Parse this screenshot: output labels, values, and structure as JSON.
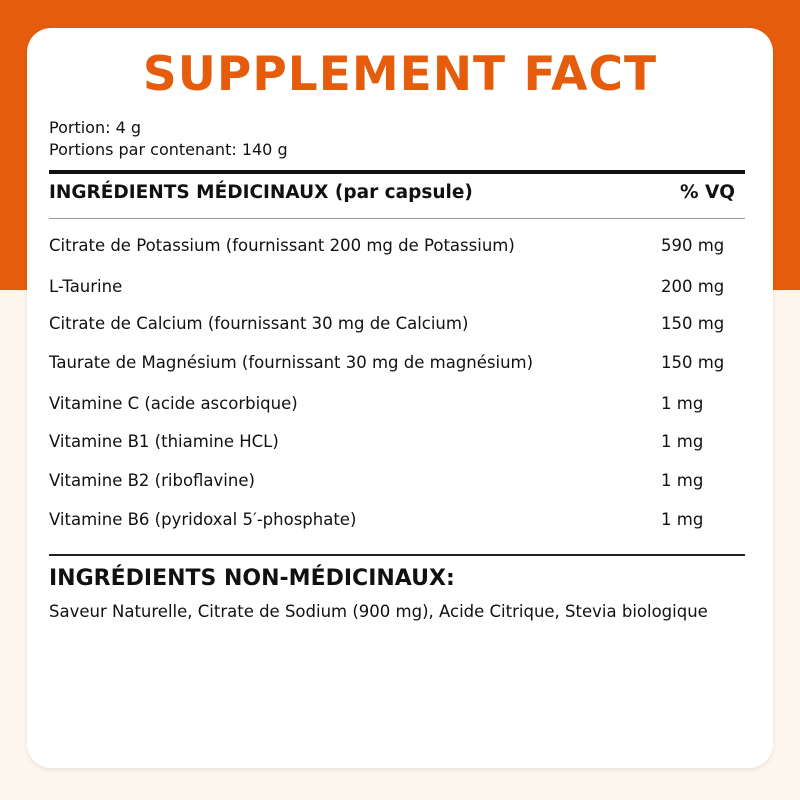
{
  "colors": {
    "accent": "#e55d0c",
    "background": "#fcf6ef"
  },
  "title": "SUPPLEMENT FACT",
  "portion": "Portion: 4 g",
  "portions_per_container": "Portions par contenant: 140 g",
  "table": {
    "header_left": "INGRÉDIENTS MÉDICINAUX (par capsule)",
    "header_right": "% VQ",
    "rows": [
      {
        "name": "Citrate de Potassium (fournissant 200 mg de Potassium)",
        "value": "590 mg"
      },
      {
        "name": "L-Taurine",
        "value": "200 mg"
      },
      {
        "name": "Citrate de Calcium (fournissant 30 mg de Calcium)",
        "value": "150 mg"
      },
      {
        "name": "Taurate de Magnésium (fournissant 30 mg de magnésium)",
        "value": "150 mg"
      },
      {
        "name": "Vitamine C (acide ascorbique)",
        "value": "1 mg"
      },
      {
        "name": "Vitamine B1 (thiamine HCL)",
        "value": "1 mg"
      },
      {
        "name": "Vitamine B2 (riboflavine)",
        "value": "1 mg"
      },
      {
        "name": "Vitamine B6 (pyridoxal 5′-phosphate)",
        "value": "1 mg"
      }
    ]
  },
  "non_medicinal": {
    "heading": "INGRÉDIENTS NON-MÉDICINAUX:",
    "text": "Saveur Naturelle, Citrate de Sodium (900 mg), Acide Citrique, Stevia biologique"
  }
}
